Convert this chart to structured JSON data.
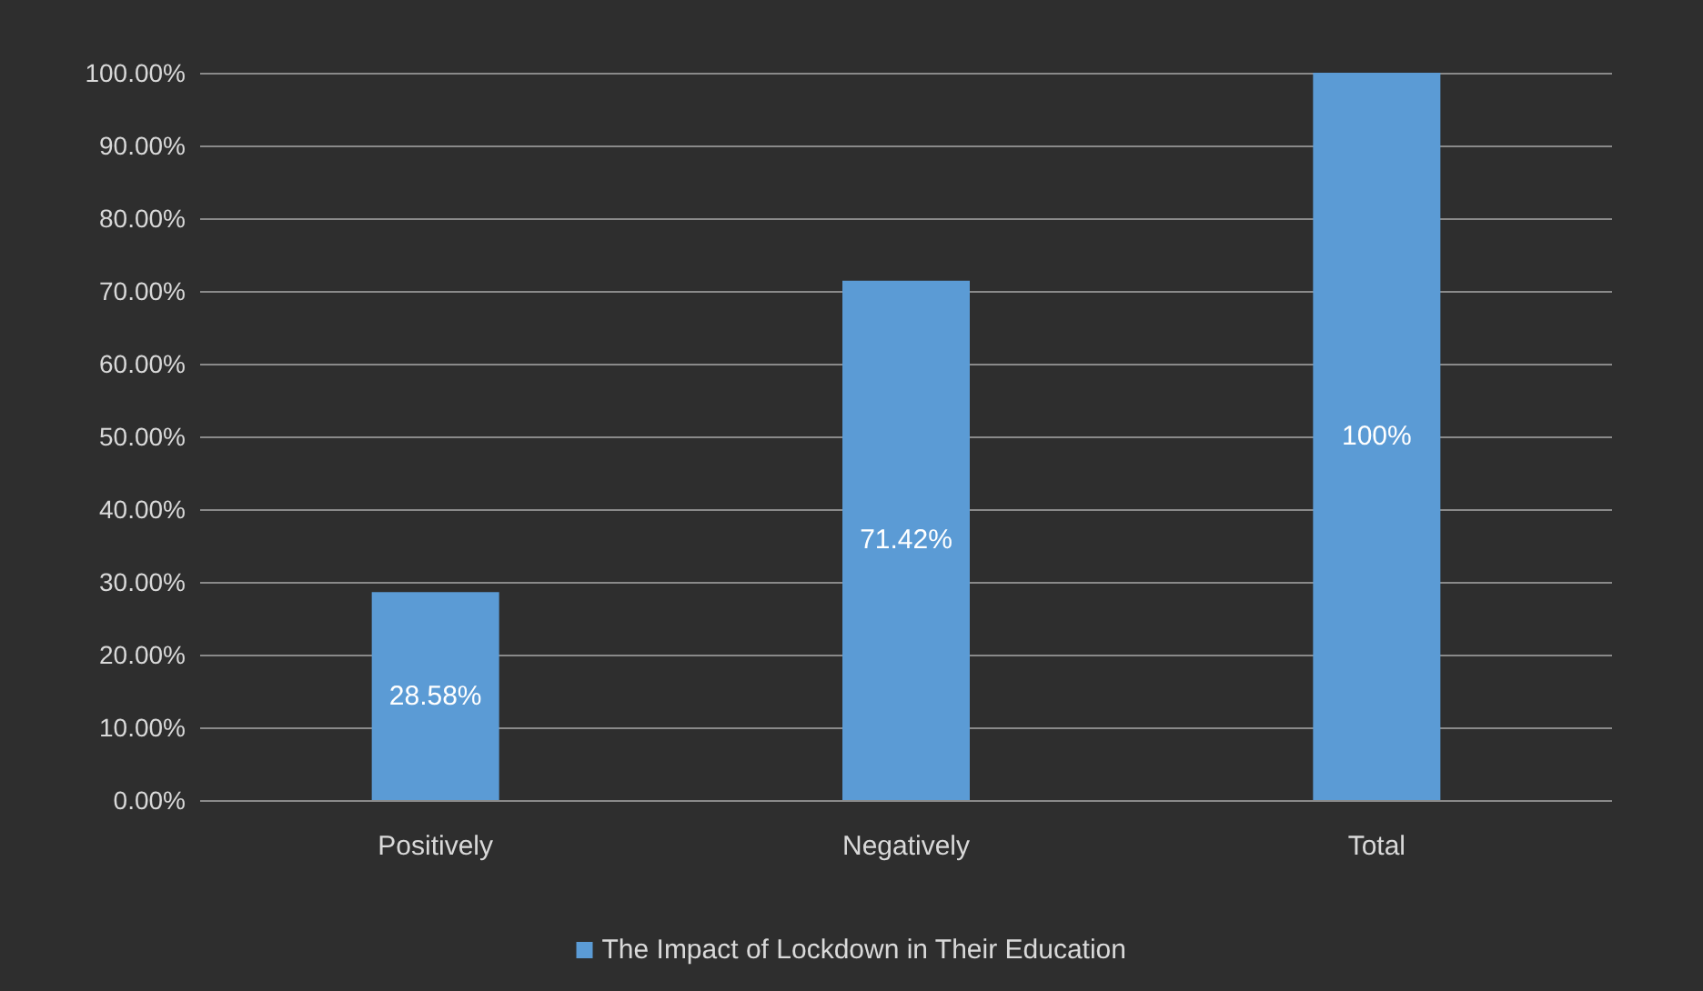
{
  "chart_data": {
    "type": "bar",
    "categories": [
      "Positively",
      "Negatively",
      "Total"
    ],
    "series": [
      {
        "name": "The Impact of Lockdown in Their Education",
        "color": "#5b9bd5",
        "values": [
          28.58,
          71.42,
          100
        ],
        "value_labels": [
          "28.58%",
          "71.42%",
          "100%"
        ]
      }
    ],
    "ylim": [
      0,
      100
    ],
    "yticks": [
      {
        "value": 0,
        "label": "0.00%"
      },
      {
        "value": 10,
        "label": "10.00%"
      },
      {
        "value": 20,
        "label": "20.00%"
      },
      {
        "value": 30,
        "label": "30.00%"
      },
      {
        "value": 40,
        "label": "40.00%"
      },
      {
        "value": 50,
        "label": "50.00%"
      },
      {
        "value": 60,
        "label": "60.00%"
      },
      {
        "value": 70,
        "label": "70.00%"
      },
      {
        "value": 80,
        "label": "80.00%"
      },
      {
        "value": 90,
        "label": "90.00%"
      },
      {
        "value": 100,
        "label": "100.00%"
      }
    ],
    "grid": "y",
    "legend": "bottom"
  }
}
